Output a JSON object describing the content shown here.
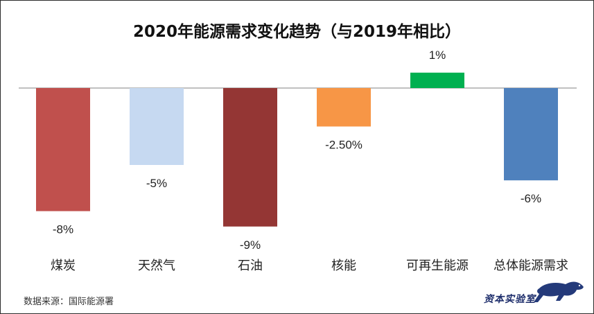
{
  "chart_data": {
    "type": "bar",
    "title": "2020年能源需求变化趋势（与2019年相比）",
    "categories": [
      "煤炭",
      "天然气",
      "石油",
      "核能",
      "可再生能源",
      "总体能源需求"
    ],
    "values": [
      -8,
      -5,
      -9,
      -2.5,
      1,
      -6
    ],
    "value_labels": [
      "-8%",
      "-5%",
      "-9%",
      "-2.50%",
      "1%",
      "-6%"
    ],
    "colors": [
      "#c0504d",
      "#c6d9f1",
      "#943634",
      "#f79646",
      "#00b050",
      "#4f81bd"
    ],
    "ylim": [
      -9,
      1
    ],
    "xlabel": "",
    "ylabel": "",
    "grid": false,
    "legend": "none"
  },
  "footer": {
    "source": "数据来源：国际能源署",
    "logo_text": "资本实验室",
    "logo_icon": "leopard-icon"
  }
}
